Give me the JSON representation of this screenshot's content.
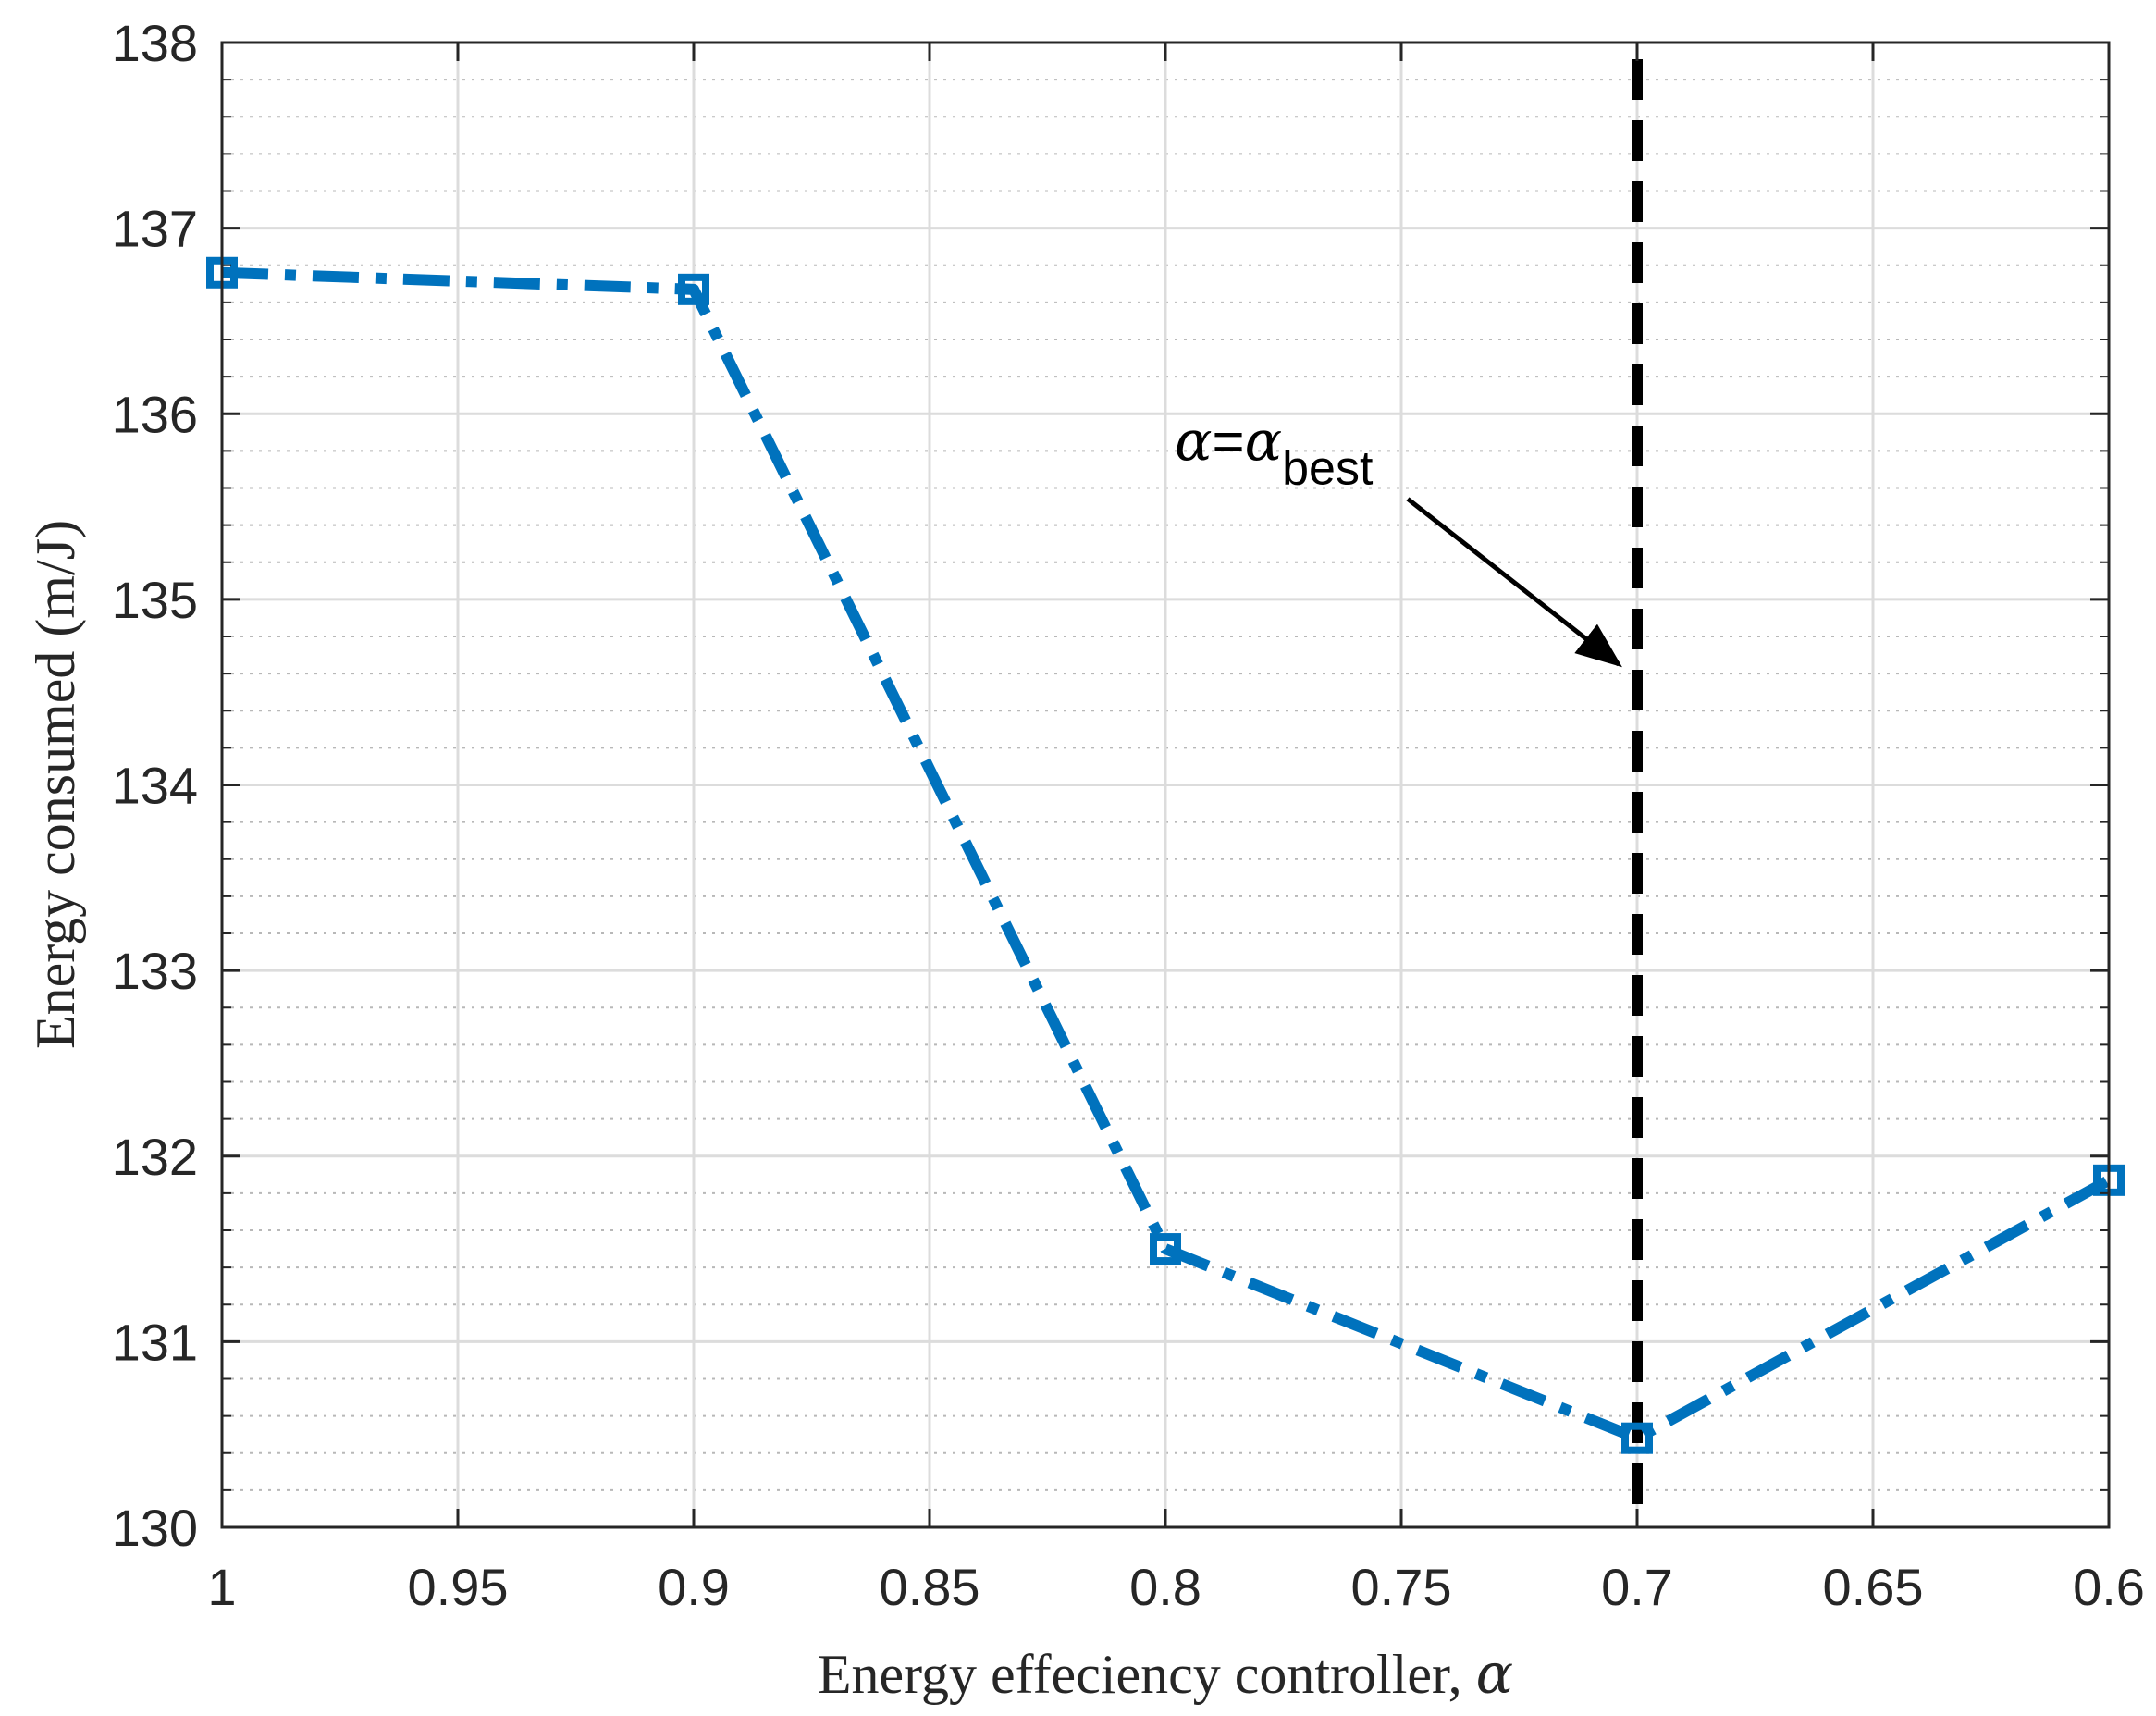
{
  "chart_data": {
    "type": "line",
    "xlabel": "Energy effeciency controller, ",
    "xlabel_symbol": "α",
    "ylabel": "Energy consumed (m/J)",
    "xlim": [
      1.0,
      0.6
    ],
    "ylim": [
      130,
      138
    ],
    "x_reversed": true,
    "x_ticks": [
      1,
      0.95,
      0.9,
      0.85,
      0.8,
      0.75,
      0.7,
      0.65,
      0.6
    ],
    "x_tick_labels": [
      "1",
      "0.95",
      "0.9",
      "0.85",
      "0.8",
      "0.75",
      "0.7",
      "0.65",
      "0.6"
    ],
    "y_ticks": [
      130,
      131,
      132,
      133,
      134,
      135,
      136,
      137,
      138
    ],
    "y_tick_labels": [
      "130",
      "131",
      "132",
      "133",
      "134",
      "135",
      "136",
      "137",
      "138"
    ],
    "grid": true,
    "minor_grid": true,
    "series": [
      {
        "x": [
          1.0,
          0.9,
          0.8,
          0.7,
          0.6
        ],
        "y": [
          136.76,
          136.67,
          131.5,
          130.48,
          131.87
        ],
        "color": "#0072BD",
        "line_style": "dash-dot",
        "marker": "square"
      }
    ],
    "reference_line": {
      "x": 0.7,
      "color": "#000000",
      "line_style": "dashed"
    },
    "annotation": {
      "symbol": "α",
      "equals": "=",
      "subscript": "best",
      "arrow_target": {
        "x": 0.7,
        "y": 134.6
      },
      "text_anchor": {
        "x": 0.8,
        "y": 135.85
      }
    }
  }
}
